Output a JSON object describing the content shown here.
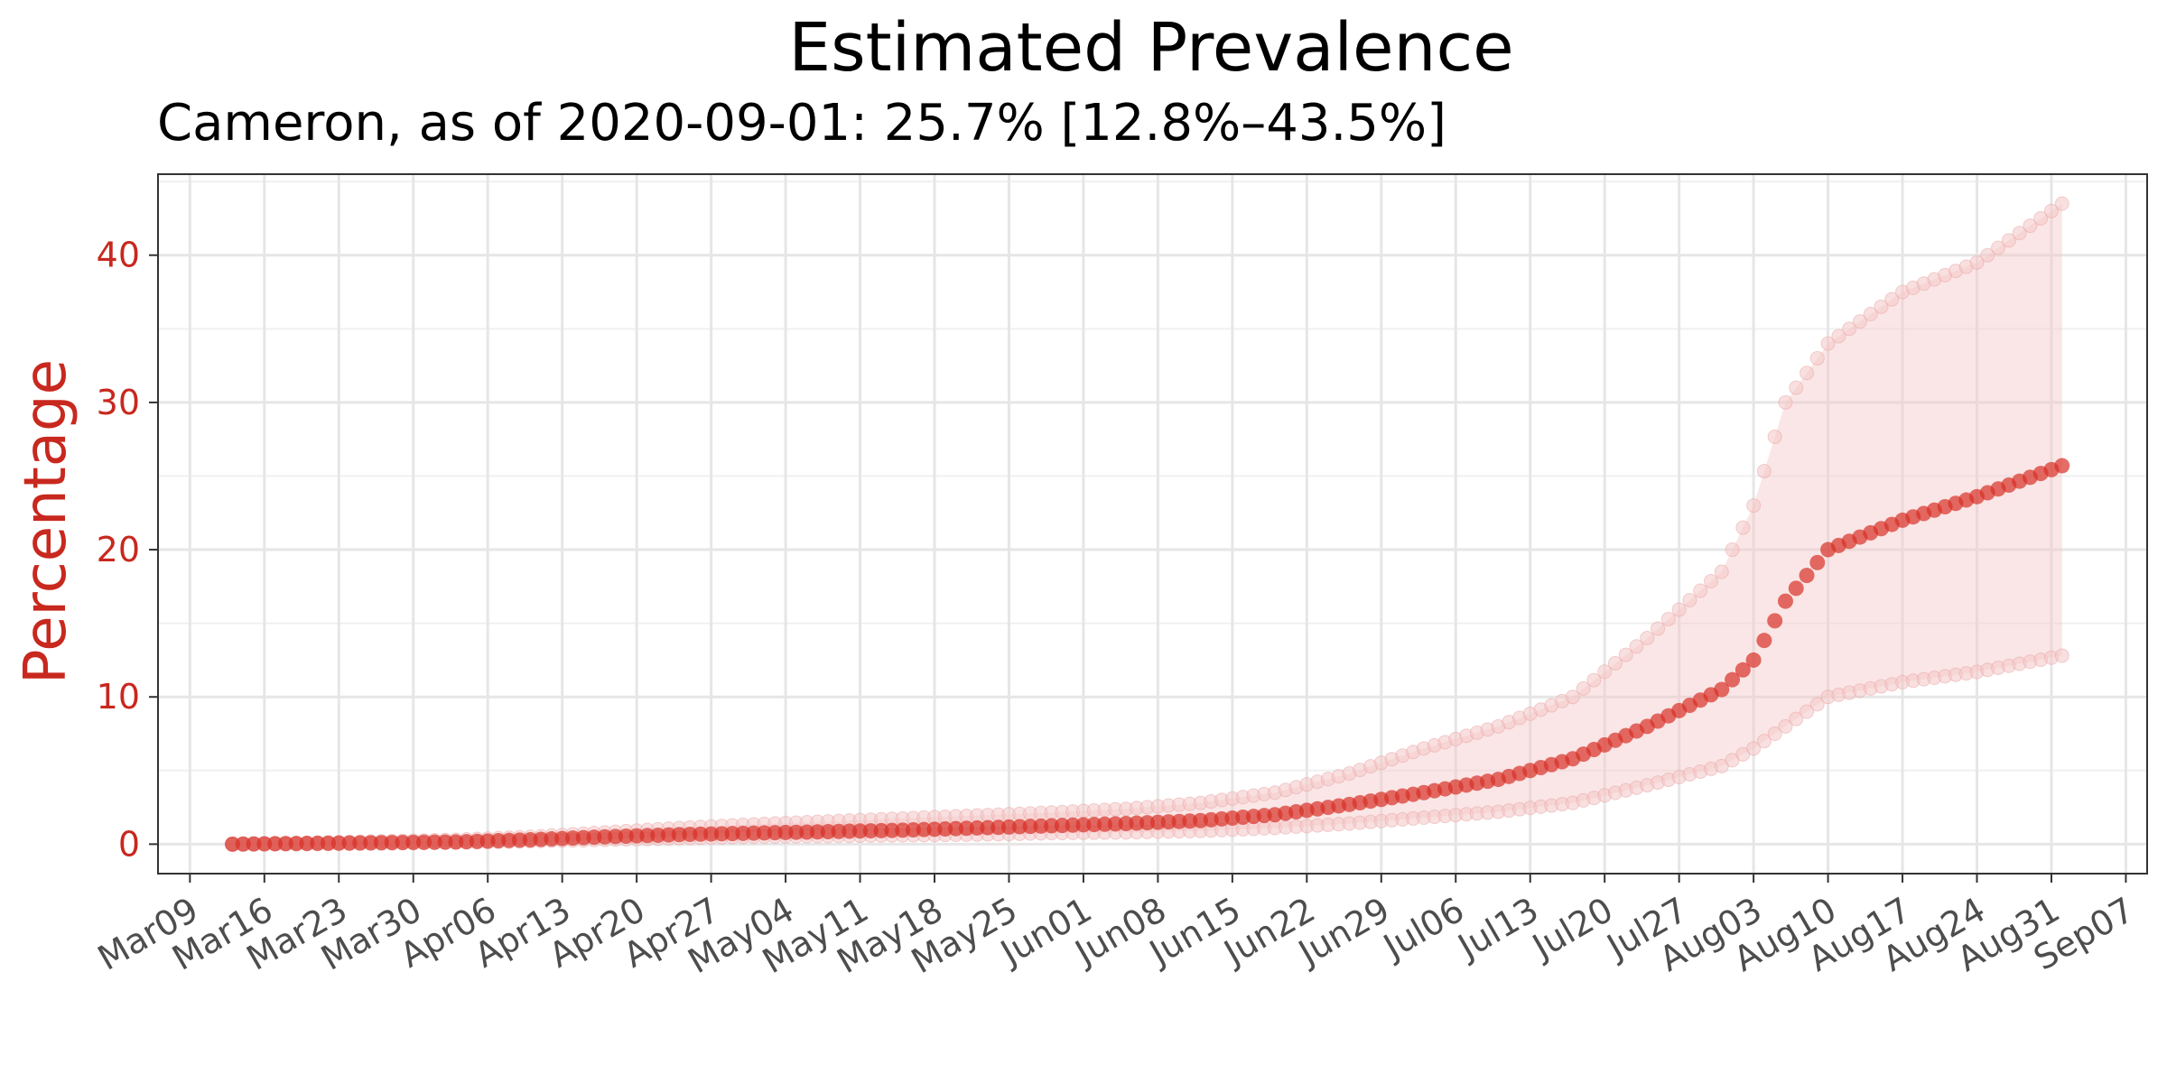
{
  "chart_data": {
    "type": "scatter",
    "title": "Estimated Prevalence",
    "subtitle": "Cameron, as of 2020-09-01:  25.7% [12.8%–43.5%]",
    "xlabel": "",
    "ylabel": "Percentage",
    "x_start": "2020-03-13",
    "x_end": "2020-09-01",
    "xlim": [
      "2020-03-06",
      "2020-09-09"
    ],
    "ylim": [
      -2,
      45.5
    ],
    "x_tick_labels": [
      "Mar09",
      "Mar16",
      "Mar23",
      "Mar30",
      "Apr06",
      "Apr13",
      "Apr20",
      "Apr27",
      "May04",
      "May11",
      "May18",
      "May25",
      "Jun01",
      "Jun08",
      "Jun15",
      "Jun22",
      "Jun29",
      "Jul06",
      "Jul13",
      "Jul20",
      "Jul27",
      "Aug03",
      "Aug10",
      "Aug17",
      "Aug24",
      "Aug31",
      "Sep07"
    ],
    "y_ticks": [
      0,
      10,
      20,
      30,
      40
    ],
    "grid": true,
    "colors": {
      "point": "#d73027",
      "band": "#f4c7c7",
      "ylabel": "#c8281e",
      "tick_x": "#4d4d4d"
    },
    "series": [
      {
        "name": "Estimate",
        "points": [
          [
            "2020-03-13",
            0.0
          ],
          [
            "2020-03-20",
            0.05
          ],
          [
            "2020-03-27",
            0.1
          ],
          [
            "2020-04-03",
            0.15
          ],
          [
            "2020-04-10",
            0.3
          ],
          [
            "2020-04-17",
            0.5
          ],
          [
            "2020-04-24",
            0.65
          ],
          [
            "2020-05-01",
            0.75
          ],
          [
            "2020-05-08",
            0.85
          ],
          [
            "2020-05-15",
            0.95
          ],
          [
            "2020-05-22",
            1.1
          ],
          [
            "2020-05-29",
            1.25
          ],
          [
            "2020-06-05",
            1.4
          ],
          [
            "2020-06-12",
            1.6
          ],
          [
            "2020-06-19",
            2.0
          ],
          [
            "2020-06-26",
            2.7
          ],
          [
            "2020-07-03",
            3.5
          ],
          [
            "2020-07-10",
            4.4
          ],
          [
            "2020-07-17",
            5.8
          ],
          [
            "2020-07-24",
            8.0
          ],
          [
            "2020-07-31",
            10.5
          ],
          [
            "2020-08-03",
            12.5
          ],
          [
            "2020-08-06",
            16.5
          ],
          [
            "2020-08-10",
            20.0
          ],
          [
            "2020-08-17",
            22.0
          ],
          [
            "2020-08-24",
            23.6
          ],
          [
            "2020-09-01",
            25.7
          ]
        ]
      },
      {
        "name": "Lower bound",
        "points": [
          [
            "2020-03-13",
            0.0
          ],
          [
            "2020-03-20",
            0.0
          ],
          [
            "2020-03-27",
            0.05
          ],
          [
            "2020-04-03",
            0.1
          ],
          [
            "2020-04-10",
            0.2
          ],
          [
            "2020-04-17",
            0.3
          ],
          [
            "2020-04-24",
            0.4
          ],
          [
            "2020-05-01",
            0.5
          ],
          [
            "2020-05-08",
            0.55
          ],
          [
            "2020-05-15",
            0.6
          ],
          [
            "2020-05-22",
            0.65
          ],
          [
            "2020-05-29",
            0.75
          ],
          [
            "2020-06-05",
            0.8
          ],
          [
            "2020-06-12",
            0.9
          ],
          [
            "2020-06-19",
            1.1
          ],
          [
            "2020-06-26",
            1.4
          ],
          [
            "2020-07-03",
            1.8
          ],
          [
            "2020-07-10",
            2.2
          ],
          [
            "2020-07-17",
            2.8
          ],
          [
            "2020-07-24",
            4.0
          ],
          [
            "2020-07-31",
            5.3
          ],
          [
            "2020-08-03",
            6.5
          ],
          [
            "2020-08-10",
            10.0
          ],
          [
            "2020-08-17",
            11.0
          ],
          [
            "2020-08-24",
            11.7
          ],
          [
            "2020-09-01",
            12.8
          ]
        ]
      },
      {
        "name": "Upper bound",
        "points": [
          [
            "2020-03-13",
            0.0
          ],
          [
            "2020-03-20",
            0.1
          ],
          [
            "2020-03-27",
            0.2
          ],
          [
            "2020-04-03",
            0.3
          ],
          [
            "2020-04-10",
            0.5
          ],
          [
            "2020-04-17",
            0.8
          ],
          [
            "2020-04-24",
            1.1
          ],
          [
            "2020-05-01",
            1.35
          ],
          [
            "2020-05-08",
            1.55
          ],
          [
            "2020-05-15",
            1.75
          ],
          [
            "2020-05-22",
            1.95
          ],
          [
            "2020-05-29",
            2.15
          ],
          [
            "2020-06-05",
            2.4
          ],
          [
            "2020-06-12",
            2.8
          ],
          [
            "2020-06-19",
            3.5
          ],
          [
            "2020-06-26",
            4.8
          ],
          [
            "2020-07-03",
            6.5
          ],
          [
            "2020-07-10",
            8.0
          ],
          [
            "2020-07-17",
            10.0
          ],
          [
            "2020-07-24",
            14.0
          ],
          [
            "2020-07-31",
            18.5
          ],
          [
            "2020-08-03",
            23.0
          ],
          [
            "2020-08-06",
            30.0
          ],
          [
            "2020-08-10",
            34.0
          ],
          [
            "2020-08-17",
            37.5
          ],
          [
            "2020-08-24",
            39.5
          ],
          [
            "2020-09-01",
            43.5
          ]
        ]
      }
    ]
  }
}
